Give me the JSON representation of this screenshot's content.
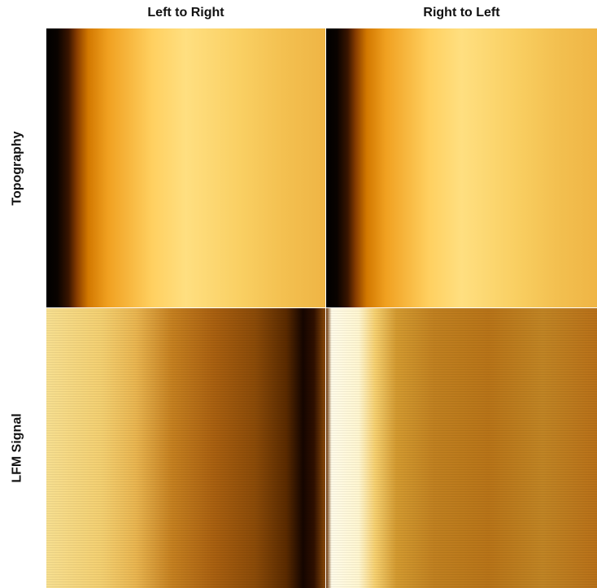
{
  "columns": [
    "Left to Right",
    "Right to Left"
  ],
  "rows": [
    "Topography",
    "LFM Signal"
  ]
}
